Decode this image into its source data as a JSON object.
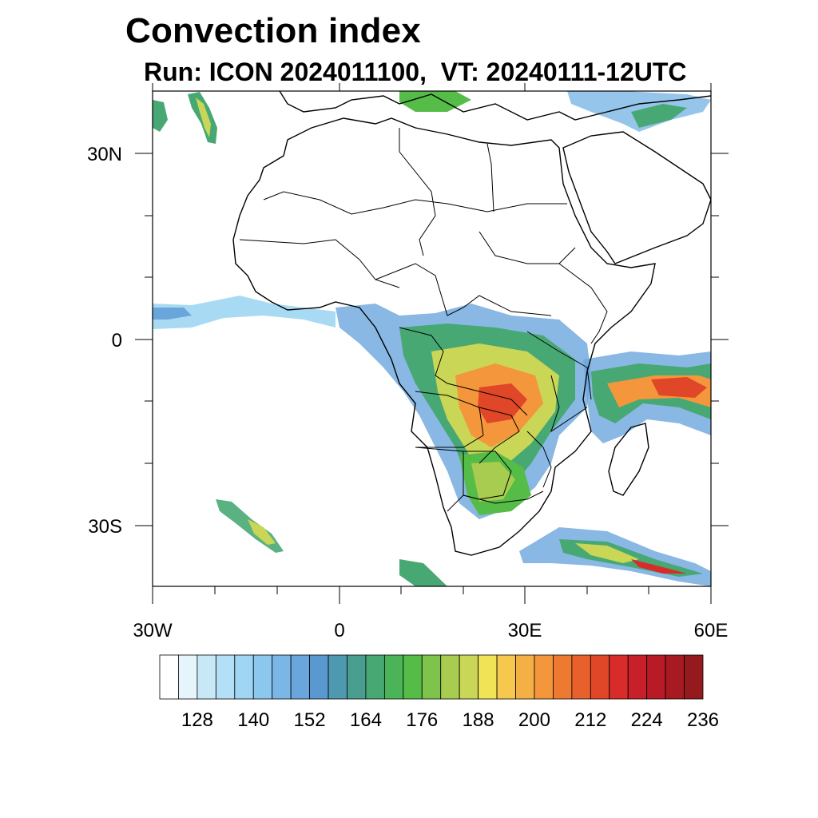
{
  "title": "Convection index",
  "subtitle": "Run: ICON 2024011100,  VT: 20240111-12UTC",
  "latitude_labels": [
    "30N",
    "0",
    "30S"
  ],
  "longitude_labels": [
    "30W",
    "0",
    "30E",
    "60E"
  ],
  "colorbar": {
    "labels": [
      "128",
      "140",
      "152",
      "164",
      "176",
      "188",
      "200",
      "212",
      "224",
      "236"
    ],
    "colors": [
      "#ffffff",
      "#e6f4fc",
      "#c9e8f7",
      "#b4e0f7",
      "#9ed6f3",
      "#8cc8ee",
      "#7ab6e6",
      "#6aa6dc",
      "#5a98d0",
      "#4e98b0",
      "#4a9e90",
      "#48a874",
      "#4cb458",
      "#56bc48",
      "#7ec44c",
      "#a8cc50",
      "#cad656",
      "#f0e456",
      "#f6c84e",
      "#f4b044",
      "#f4963c",
      "#ee7a32",
      "#e8602c",
      "#e04628",
      "#d82c2a",
      "#c8202a",
      "#b81a26",
      "#a81a22",
      "#941a1e"
    ]
  }
}
